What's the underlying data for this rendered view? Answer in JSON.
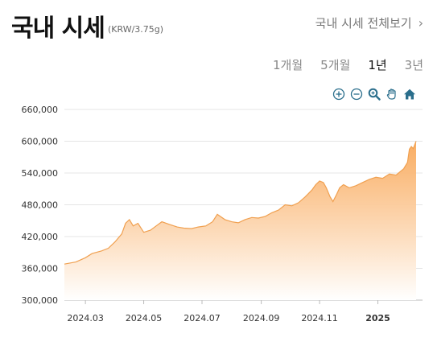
{
  "header": {
    "title": "국내 시세",
    "unit": "(KRW/3.75g)",
    "view_all": "국내 시세 전체보기"
  },
  "periods": [
    {
      "label": "1개월",
      "active": false
    },
    {
      "label": "5개월",
      "active": false
    },
    {
      "label": "1년",
      "active": true
    },
    {
      "label": "3년",
      "active": false
    }
  ],
  "tools": [
    {
      "name": "zoom-in-icon"
    },
    {
      "name": "zoom-out-icon"
    },
    {
      "name": "magnifier-icon"
    },
    {
      "name": "pan-hand-icon"
    },
    {
      "name": "home-icon"
    }
  ],
  "colors": {
    "line": "#f0a050",
    "fill_top": "#f9a95a",
    "fill_bottom": "#ffffff",
    "tool": "#2a6e8c"
  },
  "chart_data": {
    "type": "area",
    "ylim": [
      300000,
      660000
    ],
    "yticks": [
      "660,000",
      "600,000",
      "540,000",
      "480,000",
      "420,000",
      "360,000",
      "300,000"
    ],
    "ytick_values": [
      660000,
      600000,
      540000,
      480000,
      420000,
      360000,
      300000
    ],
    "xticks": [
      {
        "label": "2024.03",
        "date": "2024-03-01",
        "bold": false
      },
      {
        "label": "2024.05",
        "date": "2024-05-01",
        "bold": false
      },
      {
        "label": "2024.07",
        "date": "2024-07-01",
        "bold": false
      },
      {
        "label": "2024.09",
        "date": "2024-09-01",
        "bold": false
      },
      {
        "label": "2024.11",
        "date": "2024-11-01",
        "bold": false
      },
      {
        "label": "2025",
        "date": "2025-01-01",
        "bold": true
      }
    ],
    "xlim": [
      "2024-02-08",
      "2025-02-10"
    ],
    "series": [
      {
        "points": [
          [
            "2024-02-08",
            368000
          ],
          [
            "2024-02-20",
            372000
          ],
          [
            "2024-03-01",
            380000
          ],
          [
            "2024-03-08",
            388000
          ],
          [
            "2024-03-18",
            393000
          ],
          [
            "2024-03-25",
            398000
          ],
          [
            "2024-04-01",
            410000
          ],
          [
            "2024-04-08",
            425000
          ],
          [
            "2024-04-12",
            445000
          ],
          [
            "2024-04-16",
            452000
          ],
          [
            "2024-04-20",
            440000
          ],
          [
            "2024-04-25",
            445000
          ],
          [
            "2024-05-01",
            428000
          ],
          [
            "2024-05-08",
            432000
          ],
          [
            "2024-05-14",
            440000
          ],
          [
            "2024-05-20",
            448000
          ],
          [
            "2024-05-28",
            443000
          ],
          [
            "2024-06-05",
            438000
          ],
          [
            "2024-06-12",
            436000
          ],
          [
            "2024-06-20",
            435000
          ],
          [
            "2024-06-27",
            438000
          ],
          [
            "2024-07-05",
            440000
          ],
          [
            "2024-07-12",
            448000
          ],
          [
            "2024-07-17",
            462000
          ],
          [
            "2024-07-25",
            452000
          ],
          [
            "2024-08-01",
            448000
          ],
          [
            "2024-08-08",
            446000
          ],
          [
            "2024-08-15",
            452000
          ],
          [
            "2024-08-22",
            456000
          ],
          [
            "2024-08-29",
            455000
          ],
          [
            "2024-09-05",
            458000
          ],
          [
            "2024-09-12",
            465000
          ],
          [
            "2024-09-19",
            470000
          ],
          [
            "2024-09-26",
            480000
          ],
          [
            "2024-10-03",
            478000
          ],
          [
            "2024-10-10",
            484000
          ],
          [
            "2024-10-17",
            495000
          ],
          [
            "2024-10-24",
            508000
          ],
          [
            "2024-10-28",
            518000
          ],
          [
            "2024-11-01",
            525000
          ],
          [
            "2024-11-05",
            522000
          ],
          [
            "2024-11-08",
            512000
          ],
          [
            "2024-11-12",
            495000
          ],
          [
            "2024-11-15",
            486000
          ],
          [
            "2024-11-19",
            500000
          ],
          [
            "2024-11-22",
            512000
          ],
          [
            "2024-11-26",
            518000
          ],
          [
            "2024-12-02",
            512000
          ],
          [
            "2024-12-09",
            516000
          ],
          [
            "2024-12-16",
            522000
          ],
          [
            "2024-12-23",
            528000
          ],
          [
            "2024-12-30",
            532000
          ],
          [
            "2025-01-06",
            530000
          ],
          [
            "2025-01-13",
            538000
          ],
          [
            "2025-01-20",
            536000
          ],
          [
            "2025-01-24",
            542000
          ],
          [
            "2025-01-28",
            548000
          ],
          [
            "2025-02-01",
            560000
          ],
          [
            "2025-02-03",
            585000
          ],
          [
            "2025-02-05",
            590000
          ],
          [
            "2025-02-07",
            586000
          ],
          [
            "2025-02-10",
            600000
          ]
        ]
      }
    ],
    "grid": true
  }
}
